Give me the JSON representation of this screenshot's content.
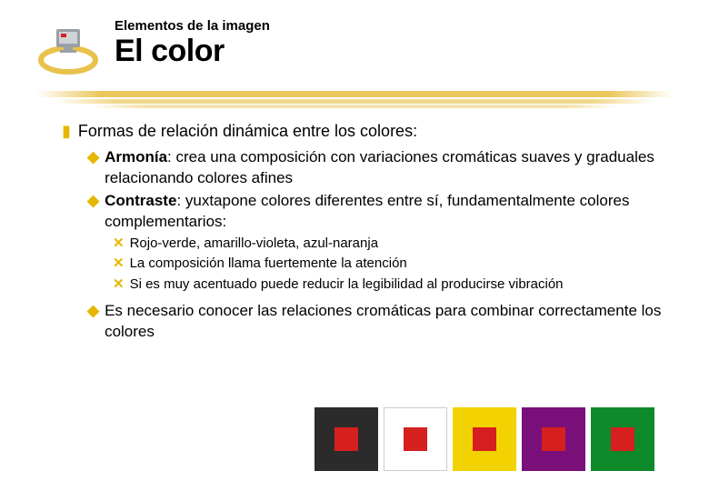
{
  "header": {
    "subtitle": "Elementos de la imagen",
    "title": "El color"
  },
  "bullets": {
    "lvl1": "Formas de relación dinámica entre los colores:",
    "armonia_bold": "Armonía",
    "armonia_rest": ": crea una composición con variaciones cromáticas suaves y graduales relacionando colores afines",
    "contraste_bold": "Contraste",
    "contraste_rest": ": yuxtapone colores diferentes entre sí, fundamentalmente colores complementarios:",
    "c1": "Rojo-verde, amarillo-violeta, azul-naranja",
    "c2": "La composición llama fuertemente la atención",
    "c3": "Si es muy acentuado puede reducir la legibilidad al producirse vibración",
    "closing": "Es necesario conocer las relaciones cromáticas para combinar correctamente los colores"
  },
  "colors": {
    "bullet": "#e5b700",
    "brush": "#e8c24a",
    "swatches": [
      {
        "outer": "#2b2b2b",
        "inner": "#d61f1f"
      },
      {
        "outer": "#ffffff",
        "inner": "#d61f1f",
        "border": "#cccccc"
      },
      {
        "outer": "#f2d200",
        "inner": "#d61f1f"
      },
      {
        "outer": "#7a0f7a",
        "inner": "#d61f1f"
      },
      {
        "outer": "#0e8a2b",
        "inner": "#d61f1f"
      }
    ]
  },
  "glyphs": {
    "z": "❚",
    "y": "◆",
    "x": "✕"
  },
  "logo": {
    "ellipse_fill": "#e8c24a",
    "monitor_body": "#9aa0a6",
    "monitor_screen": "#cfd3d8",
    "accent": "#d61f1f"
  }
}
